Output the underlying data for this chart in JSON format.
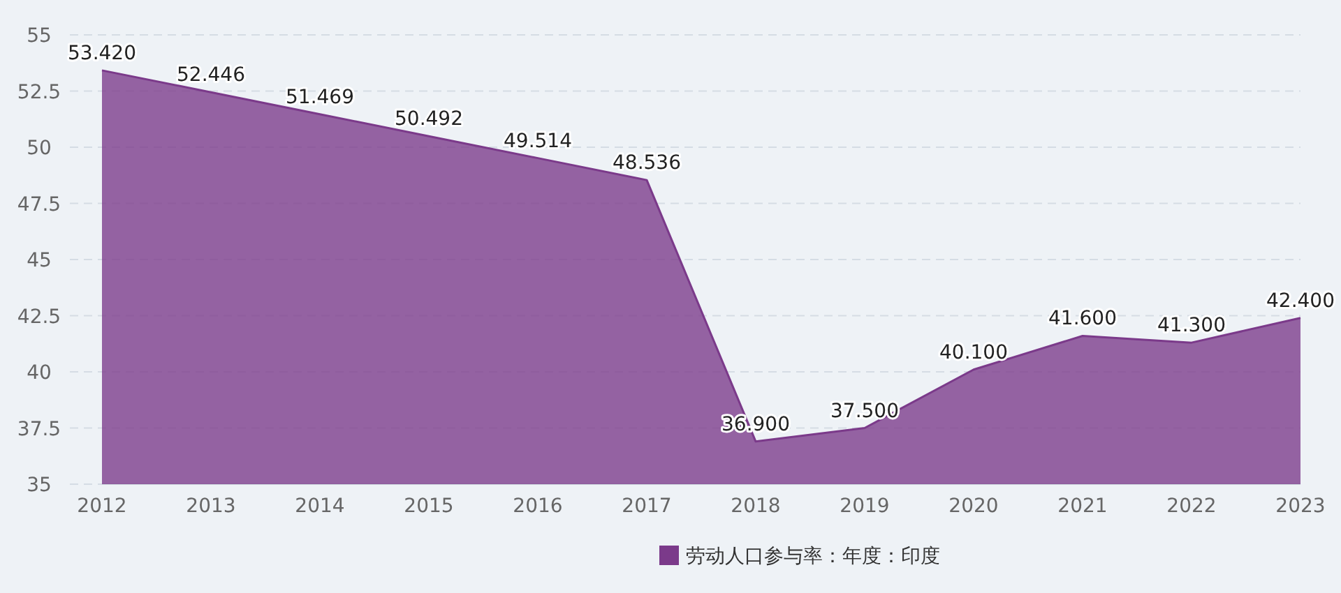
{
  "chart_data": {
    "type": "area",
    "x": [
      2012,
      2013,
      2014,
      2015,
      2016,
      2017,
      2018,
      2019,
      2020,
      2021,
      2022,
      2023
    ],
    "series": [
      {
        "name": "劳动人口参与率：年度：印度",
        "color": "#7b3a8a",
        "values": [
          53.42,
          52.446,
          51.469,
          50.492,
          49.514,
          48.536,
          36.9,
          37.5,
          40.1,
          41.6,
          41.3,
          42.4
        ],
        "value_labels": [
          "53.420",
          "52.446",
          "51.469",
          "50.492",
          "49.514",
          "48.536",
          "36.900",
          "37.500",
          "40.100",
          "41.600",
          "41.300",
          "42.400"
        ]
      }
    ],
    "xlim": [
      2012,
      2023
    ],
    "xticks": [
      2012,
      2013,
      2014,
      2015,
      2016,
      2017,
      2018,
      2019,
      2020,
      2021,
      2022,
      2023
    ],
    "ylim": [
      35,
      55
    ],
    "yticks": [
      35,
      37.5,
      40,
      42.5,
      45,
      47.5,
      50,
      52.5,
      55
    ],
    "grid": "y",
    "legend": "bottom"
  }
}
